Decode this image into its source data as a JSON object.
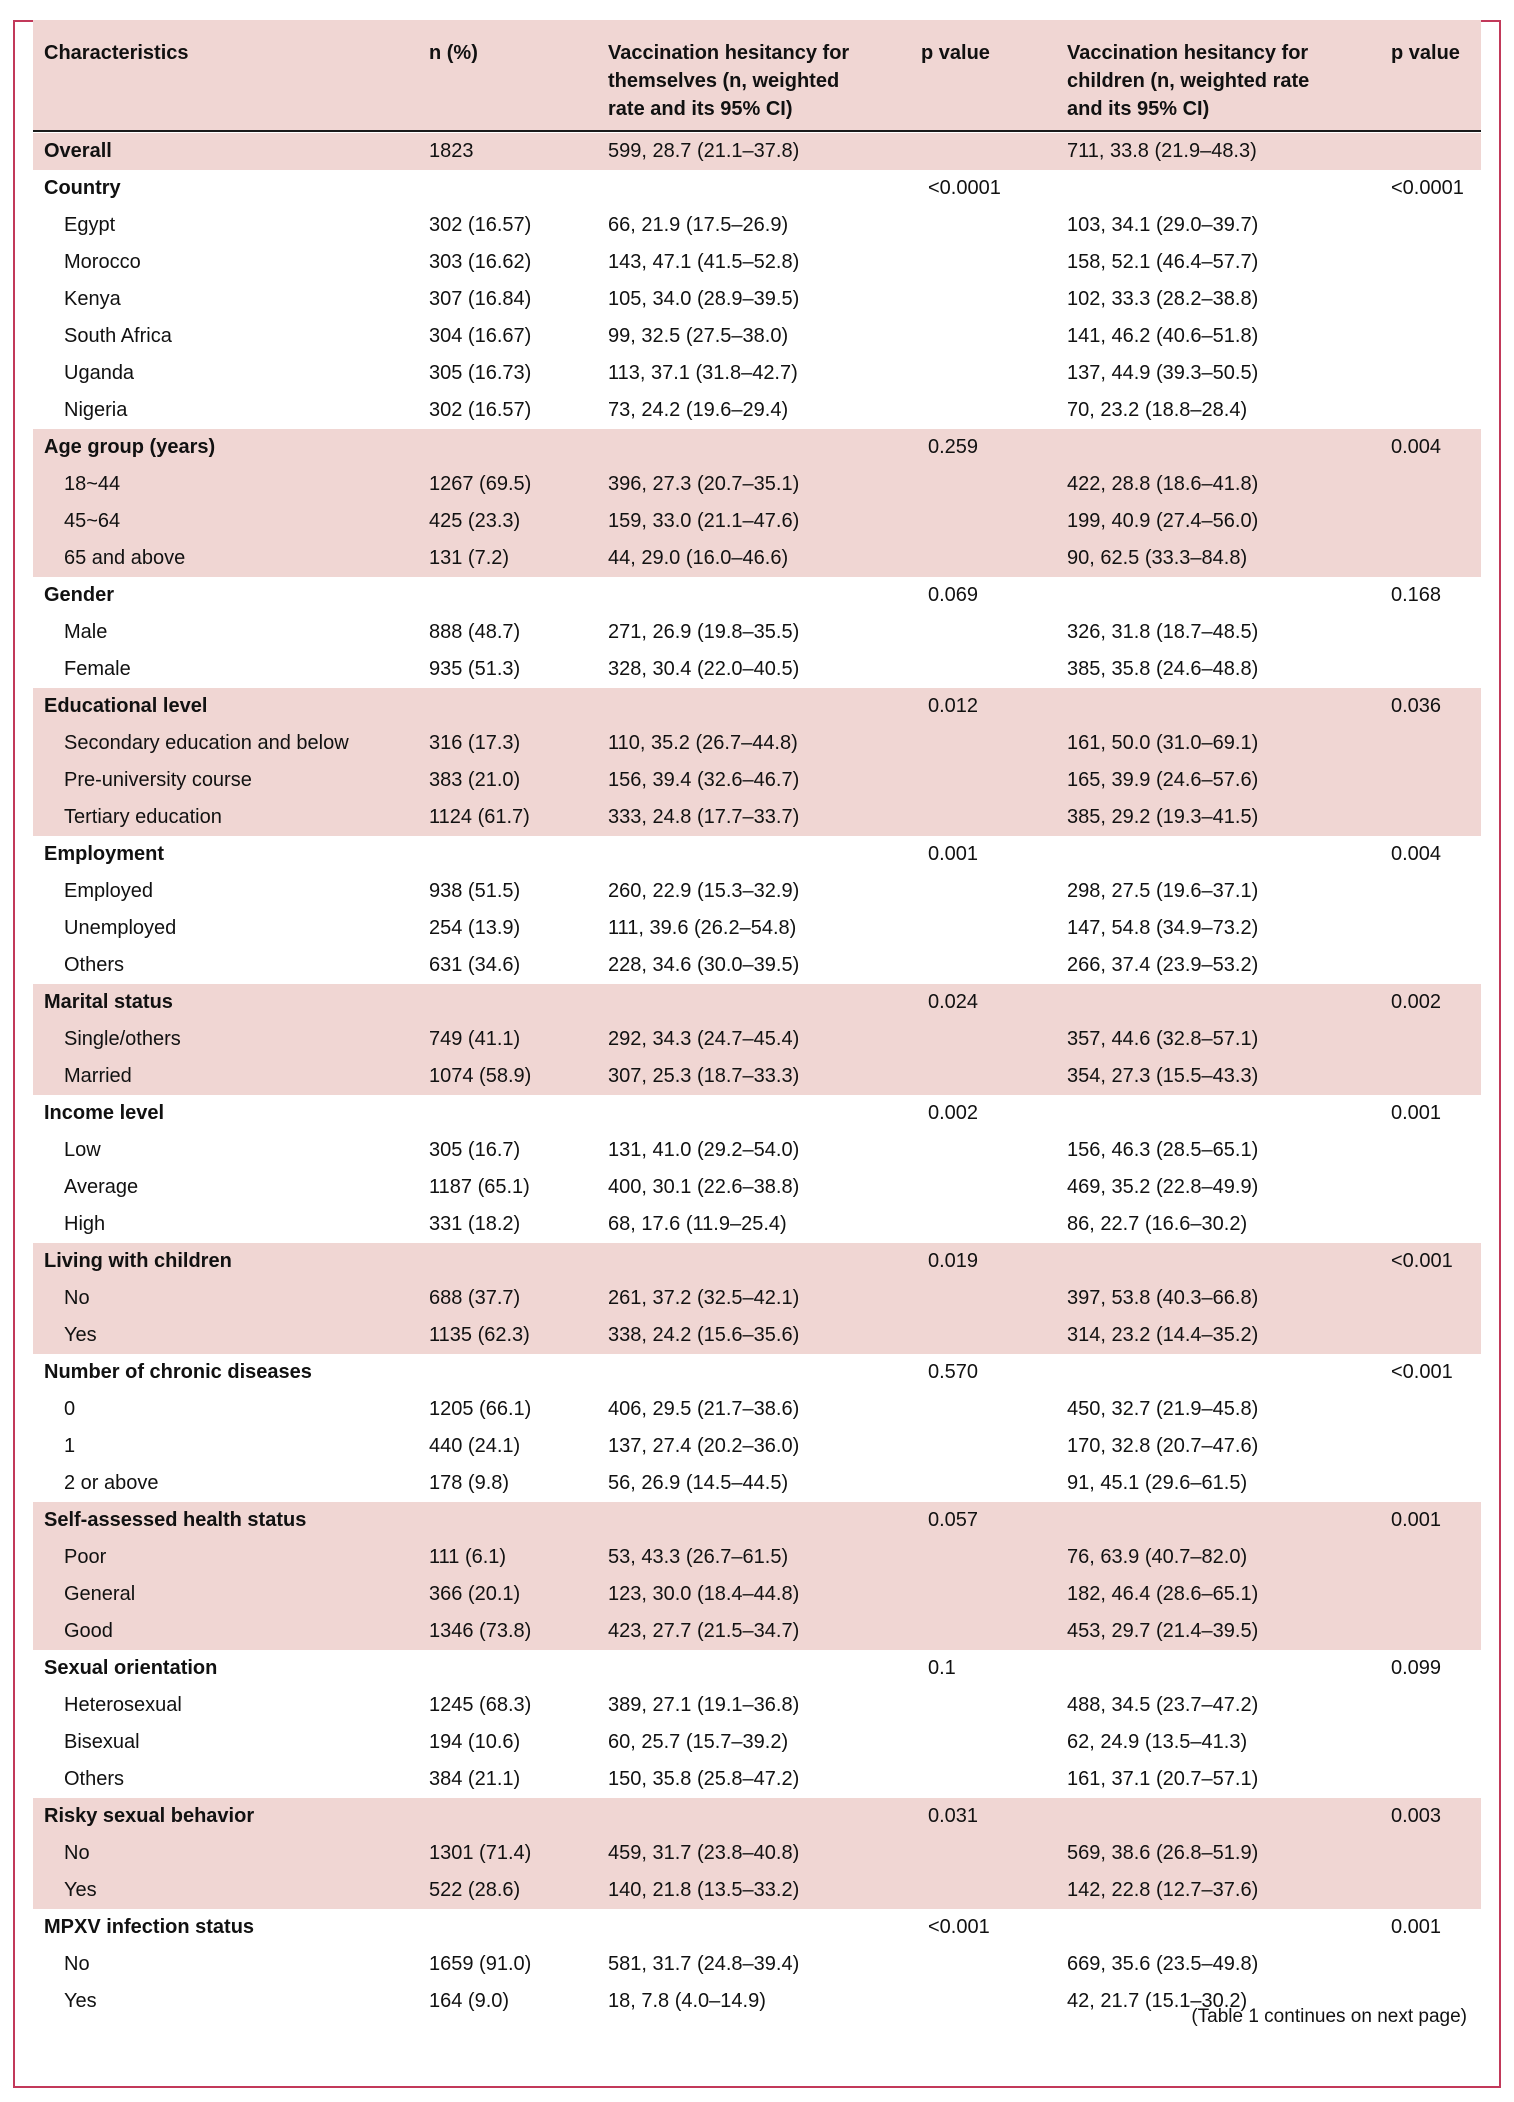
{
  "table": {
    "headers": {
      "characteristics": "Characteristics",
      "n_pct": "n (%)",
      "self_l1": "Vaccination hesitancy for",
      "self_l2": "themselves (n, weighted",
      "self_l3": "rate and its 95% CI)",
      "p1": "p value",
      "child_l1": "Vaccination hesitancy for",
      "child_l2": "children (n, weighted rate",
      "child_l3": "and its 95% CI)",
      "p2": "p value"
    },
    "rows": [
      {
        "label": "Overall",
        "n": "1823",
        "self": "599, 28.7 (21.1–37.8)",
        "p1": "",
        "child": "711, 33.8 (21.9–48.3)",
        "p2": "",
        "group": true
      },
      {
        "label": "Country",
        "n": "",
        "self": "",
        "p1": "<0.0001",
        "child": "",
        "p2": "<0.0001",
        "group": true
      },
      {
        "label": "Egypt",
        "n": "302 (16.57)",
        "self": "66, 21.9 (17.5–26.9)",
        "p1": "",
        "child": "103, 34.1 (29.0–39.7)",
        "p2": ""
      },
      {
        "label": "Morocco",
        "n": "303 (16.62)",
        "self": "143, 47.1 (41.5–52.8)",
        "p1": "",
        "child": "158, 52.1 (46.4–57.7)",
        "p2": ""
      },
      {
        "label": "Kenya",
        "n": "307 (16.84)",
        "self": "105, 34.0 (28.9–39.5)",
        "p1": "",
        "child": "102, 33.3 (28.2–38.8)",
        "p2": ""
      },
      {
        "label": "South Africa",
        "n": "304 (16.67)",
        "self": "99, 32.5 (27.5–38.0)",
        "p1": "",
        "child": "141, 46.2 (40.6–51.8)",
        "p2": ""
      },
      {
        "label": "Uganda",
        "n": "305 (16.73)",
        "self": "113, 37.1 (31.8–42.7)",
        "p1": "",
        "child": "137, 44.9 (39.3–50.5)",
        "p2": ""
      },
      {
        "label": "Nigeria",
        "n": "302 (16.57)",
        "self": "73, 24.2 (19.6–29.4)",
        "p1": "",
        "child": "70, 23.2 (18.8–28.4)",
        "p2": ""
      },
      {
        "label": "Age group (years)",
        "n": "",
        "self": "",
        "p1": "0.259",
        "child": "",
        "p2": "0.004",
        "group": true
      },
      {
        "label": "18~44",
        "n": "1267 (69.5)",
        "self": "396, 27.3 (20.7–35.1)",
        "p1": "",
        "child": "422, 28.8 (18.6–41.8)",
        "p2": ""
      },
      {
        "label": "45~64",
        "n": "425 (23.3)",
        "self": "159, 33.0 (21.1–47.6)",
        "p1": "",
        "child": "199, 40.9 (27.4–56.0)",
        "p2": ""
      },
      {
        "label": "65 and above",
        "n": "131 (7.2)",
        "self": "44, 29.0 (16.0–46.6)",
        "p1": "",
        "child": "90, 62.5 (33.3–84.8)",
        "p2": ""
      },
      {
        "label": "Gender",
        "n": "",
        "self": "",
        "p1": "0.069",
        "child": "",
        "p2": "0.168",
        "group": true
      },
      {
        "label": "Male",
        "n": "888 (48.7)",
        "self": "271, 26.9 (19.8–35.5)",
        "p1": "",
        "child": "326, 31.8 (18.7–48.5)",
        "p2": ""
      },
      {
        "label": "Female",
        "n": "935 (51.3)",
        "self": "328, 30.4 (22.0–40.5)",
        "p1": "",
        "child": "385, 35.8 (24.6–48.8)",
        "p2": ""
      },
      {
        "label": "Educational level",
        "n": "",
        "self": "",
        "p1": "0.012",
        "child": "",
        "p2": "0.036",
        "group": true
      },
      {
        "label": "Secondary education and below",
        "n": "316 (17.3)",
        "self": "110, 35.2 (26.7–44.8)",
        "p1": "",
        "child": "161, 50.0 (31.0–69.1)",
        "p2": ""
      },
      {
        "label": "Pre-university course",
        "n": "383 (21.0)",
        "self": "156, 39.4 (32.6–46.7)",
        "p1": "",
        "child": "165, 39.9 (24.6–57.6)",
        "p2": ""
      },
      {
        "label": "Tertiary education",
        "n": "1124 (61.7)",
        "self": "333, 24.8 (17.7–33.7)",
        "p1": "",
        "child": "385, 29.2 (19.3–41.5)",
        "p2": ""
      },
      {
        "label": "Employment",
        "n": "",
        "self": "",
        "p1": "0.001",
        "child": "",
        "p2": "0.004",
        "group": true
      },
      {
        "label": "Employed",
        "n": "938 (51.5)",
        "self": "260, 22.9 (15.3–32.9)",
        "p1": "",
        "child": "298, 27.5 (19.6–37.1)",
        "p2": ""
      },
      {
        "label": "Unemployed",
        "n": "254 (13.9)",
        "self": "111, 39.6 (26.2–54.8)",
        "p1": "",
        "child": "147, 54.8 (34.9–73.2)",
        "p2": ""
      },
      {
        "label": "Others",
        "n": "631 (34.6)",
        "self": "228, 34.6 (30.0–39.5)",
        "p1": "",
        "child": "266, 37.4 (23.9–53.2)",
        "p2": ""
      },
      {
        "label": "Marital status",
        "n": "",
        "self": "",
        "p1": "0.024",
        "child": "",
        "p2": "0.002",
        "group": true
      },
      {
        "label": "Single/others",
        "n": "749 (41.1)",
        "self": "292, 34.3 (24.7–45.4)",
        "p1": "",
        "child": "357, 44.6 (32.8–57.1)",
        "p2": ""
      },
      {
        "label": "Married",
        "n": "1074 (58.9)",
        "self": "307, 25.3 (18.7–33.3)",
        "p1": "",
        "child": "354, 27.3 (15.5–43.3)",
        "p2": ""
      },
      {
        "label": "Income level",
        "n": "",
        "self": "",
        "p1": "0.002",
        "child": "",
        "p2": "0.001",
        "group": true
      },
      {
        "label": "Low",
        "n": "305 (16.7)",
        "self": "131, 41.0 (29.2–54.0)",
        "p1": "",
        "child": "156, 46.3 (28.5–65.1)",
        "p2": ""
      },
      {
        "label": "Average",
        "n": "1187 (65.1)",
        "self": "400, 30.1 (22.6–38.8)",
        "p1": "",
        "child": "469, 35.2 (22.8–49.9)",
        "p2": ""
      },
      {
        "label": "High",
        "n": "331 (18.2)",
        "self": "68, 17.6 (11.9–25.4)",
        "p1": "",
        "child": "86, 22.7 (16.6–30.2)",
        "p2": ""
      },
      {
        "label": "Living with children",
        "n": "",
        "self": "",
        "p1": "0.019",
        "child": "",
        "p2": "<0.001",
        "group": true
      },
      {
        "label": "No",
        "n": "688 (37.7)",
        "self": "261, 37.2 (32.5–42.1)",
        "p1": "",
        "child": "397, 53.8 (40.3–66.8)",
        "p2": ""
      },
      {
        "label": "Yes",
        "n": "1135 (62.3)",
        "self": "338, 24.2 (15.6–35.6)",
        "p1": "",
        "child": "314, 23.2 (14.4–35.2)",
        "p2": ""
      },
      {
        "label": "Number of chronic diseases",
        "n": "",
        "self": "",
        "p1": "0.570",
        "child": "",
        "p2": "<0.001",
        "group": true
      },
      {
        "label": "0",
        "n": "1205 (66.1)",
        "self": "406, 29.5 (21.7–38.6)",
        "p1": "",
        "child": "450, 32.7 (21.9–45.8)",
        "p2": ""
      },
      {
        "label": "1",
        "n": "440 (24.1)",
        "self": "137, 27.4 (20.2–36.0)",
        "p1": "",
        "child": "170, 32.8 (20.7–47.6)",
        "p2": ""
      },
      {
        "label": "2 or above",
        "n": "178 (9.8)",
        "self": "56, 26.9 (14.5–44.5)",
        "p1": "",
        "child": "91, 45.1 (29.6–61.5)",
        "p2": ""
      },
      {
        "label": "Self-assessed health status",
        "n": "",
        "self": "",
        "p1": "0.057",
        "child": "",
        "p2": "0.001",
        "group": true
      },
      {
        "label": "Poor",
        "n": "111 (6.1)",
        "self": "53, 43.3 (26.7–61.5)",
        "p1": "",
        "child": "76, 63.9 (40.7–82.0)",
        "p2": ""
      },
      {
        "label": "General",
        "n": "366 (20.1)",
        "self": "123, 30.0 (18.4–44.8)",
        "p1": "",
        "child": "182, 46.4 (28.6–65.1)",
        "p2": ""
      },
      {
        "label": "Good",
        "n": "1346 (73.8)",
        "self": "423, 27.7 (21.5–34.7)",
        "p1": "",
        "child": "453, 29.7 (21.4–39.5)",
        "p2": ""
      },
      {
        "label": "Sexual orientation",
        "n": "",
        "self": "",
        "p1": "0.1",
        "child": "",
        "p2": "0.099",
        "group": true
      },
      {
        "label": "Heterosexual",
        "n": "1245 (68.3)",
        "self": "389, 27.1 (19.1–36.8)",
        "p1": "",
        "child": "488, 34.5 (23.7–47.2)",
        "p2": ""
      },
      {
        "label": "Bisexual",
        "n": "194 (10.6)",
        "self": "60, 25.7 (15.7–39.2)",
        "p1": "",
        "child": "62, 24.9 (13.5–41.3)",
        "p2": ""
      },
      {
        "label": "Others",
        "n": "384 (21.1)",
        "self": "150, 35.8 (25.8–47.2)",
        "p1": "",
        "child": "161, 37.1 (20.7–57.1)",
        "p2": ""
      },
      {
        "label": "Risky sexual behavior",
        "n": "",
        "self": "",
        "p1": "0.031",
        "child": "",
        "p2": "0.003",
        "group": true
      },
      {
        "label": "No",
        "n": "1301 (71.4)",
        "self": "459, 31.7 (23.8–40.8)",
        "p1": "",
        "child": "569, 38.6 (26.8–51.9)",
        "p2": ""
      },
      {
        "label": "Yes",
        "n": "522 (28.6)",
        "self": "140, 21.8 (13.5–33.2)",
        "p1": "",
        "child": "142, 22.8 (12.7–37.6)",
        "p2": ""
      },
      {
        "label": "MPXV infection status",
        "n": "",
        "self": "",
        "p1": "<0.001",
        "child": "",
        "p2": "0.001",
        "group": true
      },
      {
        "label": "No",
        "n": "1659 (91.0)",
        "self": "581, 31.7 (24.8–39.4)",
        "p1": "",
        "child": "669, 35.6 (23.5–49.8)",
        "p2": ""
      },
      {
        "label": "Yes",
        "n": "164 (9.0)",
        "self": "18, 7.8 (4.0–14.9)",
        "p1": "",
        "child": "42, 21.7 (15.1–30.2)",
        "p2": ""
      }
    ],
    "footnote": "(Table 1 continues on next page)",
    "colors": {
      "border": "#c2395a",
      "shade": "#f0d6d3"
    }
  }
}
